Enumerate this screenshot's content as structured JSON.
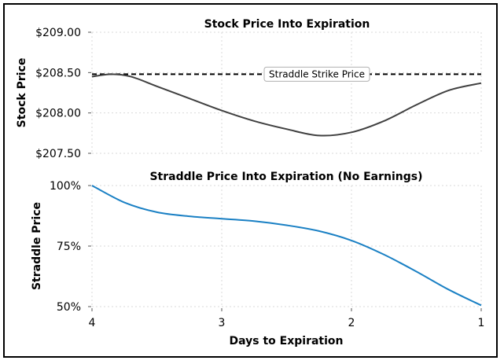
{
  "chart_data": [
    {
      "type": "line",
      "title": "Stock Price Into Expiration",
      "ylabel": "Stock Price",
      "xlabel": "",
      "x_reversed": true,
      "xlim": [
        4,
        1
      ],
      "ylim": [
        207.5,
        209.0
      ],
      "yticks": [
        209.0,
        208.5,
        208.0,
        207.5
      ],
      "ytick_labels": [
        "$209.00",
        "$208.50",
        "$208.00",
        "$207.50"
      ],
      "grid": true,
      "series": [
        {
          "color": "#404040",
          "x": [
            4.0,
            3.85,
            3.7,
            3.5,
            3.25,
            3.0,
            2.75,
            2.5,
            2.25,
            2.0,
            1.75,
            1.5,
            1.25,
            1.0
          ],
          "y": [
            208.45,
            208.48,
            208.45,
            208.33,
            208.18,
            208.03,
            207.9,
            207.8,
            207.72,
            207.76,
            207.9,
            208.1,
            208.28,
            208.37
          ]
        }
      ],
      "hline": {
        "y": 208.48,
        "label": "Straddle Strike Price",
        "style": "dashed",
        "color": "#000000"
      }
    },
    {
      "type": "line",
      "title": "Straddle Price Into Expiration (No Earnings)",
      "ylabel": "Straddle Price",
      "xlabel": "Days to Expiration",
      "x_reversed": true,
      "xlim": [
        4,
        1
      ],
      "ylim": [
        50,
        100
      ],
      "yticks": [
        100,
        75,
        50
      ],
      "ytick_labels": [
        "100%",
        "75%",
        "50%"
      ],
      "xticks": [
        4,
        3,
        2,
        1
      ],
      "xtick_labels": [
        "4",
        "3",
        "2",
        "1"
      ],
      "grid": true,
      "series": [
        {
          "color": "#1a80c4",
          "x": [
            4.0,
            3.75,
            3.5,
            3.25,
            3.0,
            2.75,
            2.5,
            2.25,
            2.0,
            1.75,
            1.5,
            1.25,
            1.0
          ],
          "y": [
            100,
            93,
            89,
            87.3,
            86.3,
            85.3,
            83.6,
            81.2,
            77.3,
            71.5,
            64.5,
            57,
            50.5
          ]
        }
      ]
    }
  ]
}
